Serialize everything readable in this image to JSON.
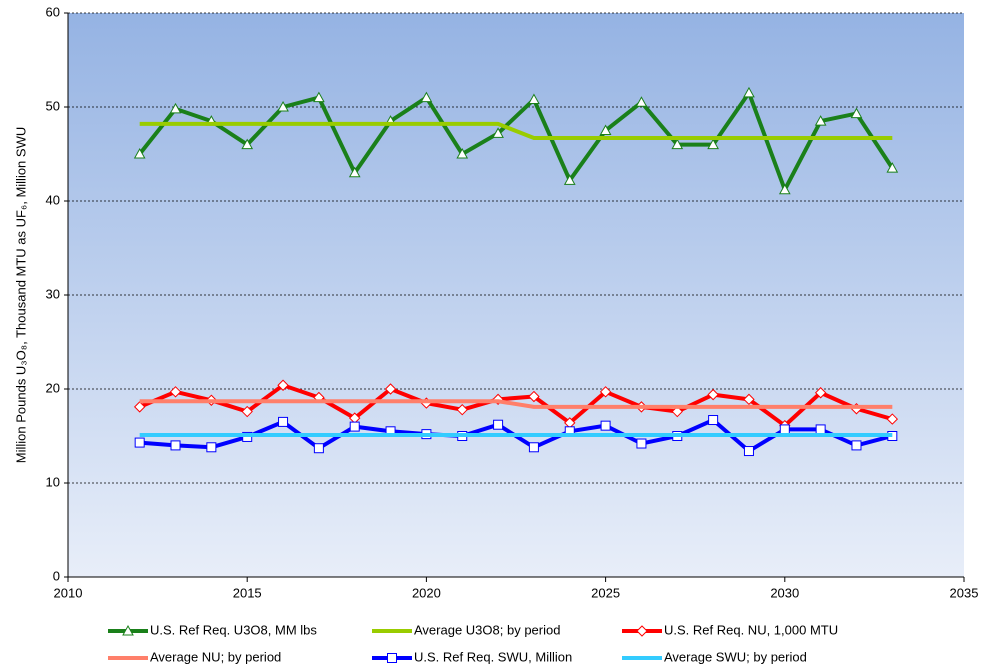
{
  "chart_data": {
    "type": "line",
    "y_label": "Million Pounds U₃O₈, Thousand MTU as UF₆, Million SWU",
    "x": [
      2012,
      2013,
      2014,
      2015,
      2016,
      2017,
      2018,
      2019,
      2020,
      2021,
      2022,
      2023,
      2024,
      2025,
      2026,
      2027,
      2028,
      2029,
      2030,
      2031,
      2032,
      2033
    ],
    "xlim": [
      2010,
      2035
    ],
    "xticks": [
      2010,
      2015,
      2020,
      2025,
      2030,
      2035
    ],
    "ylim": [
      0,
      60
    ],
    "yticks": [
      0,
      10,
      20,
      30,
      40,
      50,
      60
    ],
    "grid": true,
    "legend": "bottom",
    "series": [
      {
        "name": "U.S. Ref Req. U3O8, MM lbs",
        "color": "#1a801a",
        "marker": "triangle",
        "values": [
          45.0,
          49.8,
          48.5,
          46.0,
          50.0,
          51.0,
          43.0,
          48.5,
          51.0,
          45.0,
          47.2,
          50.8,
          42.2,
          47.5,
          50.5,
          46.0,
          46.0,
          51.5,
          41.2,
          48.5,
          49.3,
          43.5
        ]
      },
      {
        "name": "Average U3O8; by period",
        "color": "#99cc00",
        "values": [
          48.2,
          48.2,
          48.2,
          48.2,
          48.2,
          48.2,
          48.2,
          48.2,
          48.2,
          48.2,
          48.2,
          46.7,
          46.7,
          46.7,
          46.7,
          46.7,
          46.7,
          46.7,
          46.7,
          46.7,
          46.7,
          46.7
        ]
      },
      {
        "name": "U.S. Ref Req. NU, 1,000 MTU",
        "color": "#ff0000",
        "marker": "diamond",
        "values": [
          18.1,
          19.7,
          18.8,
          17.6,
          20.4,
          19.1,
          16.9,
          20.0,
          18.5,
          17.8,
          18.9,
          19.2,
          16.4,
          19.7,
          18.1,
          17.6,
          19.4,
          18.9,
          16.1,
          19.6,
          17.9,
          16.8
        ]
      },
      {
        "name": "Average NU; by period",
        "color": "#ff7f6a",
        "values": [
          18.7,
          18.7,
          18.7,
          18.7,
          18.7,
          18.7,
          18.7,
          18.7,
          18.7,
          18.7,
          18.7,
          18.1,
          18.1,
          18.1,
          18.1,
          18.1,
          18.1,
          18.1,
          18.1,
          18.1,
          18.1,
          18.1
        ]
      },
      {
        "name": "U.S. Ref Req. SWU, Million",
        "color": "#0000ff",
        "marker": "square",
        "values": [
          14.3,
          14.0,
          13.8,
          14.9,
          16.5,
          13.7,
          16.0,
          15.5,
          15.2,
          15.0,
          16.2,
          13.8,
          15.5,
          16.1,
          14.2,
          15.0,
          16.7,
          13.4,
          15.7,
          15.7,
          14.0,
          15.0
        ]
      },
      {
        "name": "Average SWU; by period",
        "color": "#33ccff",
        "values": [
          15.1,
          15.1,
          15.1,
          15.1,
          15.1,
          15.1,
          15.1,
          15.1,
          15.1,
          15.1,
          15.1,
          15.1,
          15.1,
          15.1,
          15.1,
          15.1,
          15.1,
          15.1,
          15.1,
          15.1,
          15.1,
          15.1
        ]
      }
    ]
  }
}
